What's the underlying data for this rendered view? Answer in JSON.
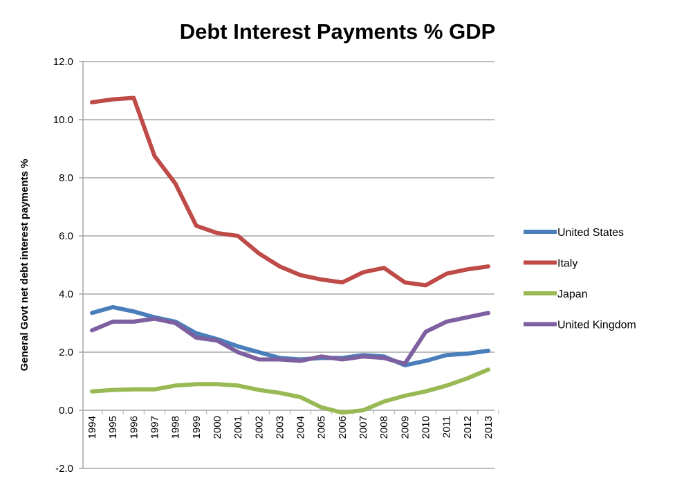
{
  "chart_data": {
    "type": "line",
    "title": "Debt Interest Payments % GDP",
    "xlabel": "",
    "ylabel": "General Govt net debt interest payments %",
    "ylim": [
      -2,
      12
    ],
    "yticks": [
      "-2.0",
      "0.0",
      "2.0",
      "4.0",
      "6.0",
      "8.0",
      "10.0",
      "12.0"
    ],
    "grid": true,
    "legend_position": "right",
    "x": [
      "1994",
      "1995",
      "1996",
      "1997",
      "1998",
      "1999",
      "2000",
      "2001",
      "2002",
      "2003",
      "2004",
      "2005",
      "2006",
      "2007",
      "2008",
      "2009",
      "2010",
      "2011",
      "2012",
      "2013"
    ],
    "series": [
      {
        "name": "United States",
        "color": "#4a7ebb",
        "values": [
          3.35,
          3.55,
          3.4,
          3.2,
          3.05,
          2.65,
          2.45,
          2.2,
          2.0,
          1.8,
          1.75,
          1.8,
          1.8,
          1.9,
          1.85,
          1.55,
          1.7,
          1.9,
          1.95,
          2.05
        ]
      },
      {
        "name": "Italy",
        "color": "#be4b48",
        "values": [
          10.6,
          10.7,
          10.75,
          8.75,
          7.8,
          6.35,
          6.1,
          6.0,
          5.4,
          4.95,
          4.65,
          4.5,
          4.4,
          4.75,
          4.9,
          4.4,
          4.3,
          4.7,
          4.85,
          4.95
        ]
      },
      {
        "name": "Japan",
        "color": "#98b954",
        "values": [
          0.65,
          0.7,
          0.72,
          0.72,
          0.85,
          0.9,
          0.9,
          0.85,
          0.7,
          0.6,
          0.45,
          0.1,
          -0.08,
          0.0,
          0.3,
          0.5,
          0.65,
          0.85,
          1.1,
          1.4
        ]
      },
      {
        "name": "United Kingdom",
        "color": "#7d60a0",
        "values": [
          2.75,
          3.05,
          3.05,
          3.15,
          3.0,
          2.5,
          2.4,
          2.0,
          1.75,
          1.75,
          1.7,
          1.85,
          1.75,
          1.85,
          1.8,
          1.6,
          2.7,
          3.05,
          3.2,
          3.35
        ]
      }
    ]
  }
}
